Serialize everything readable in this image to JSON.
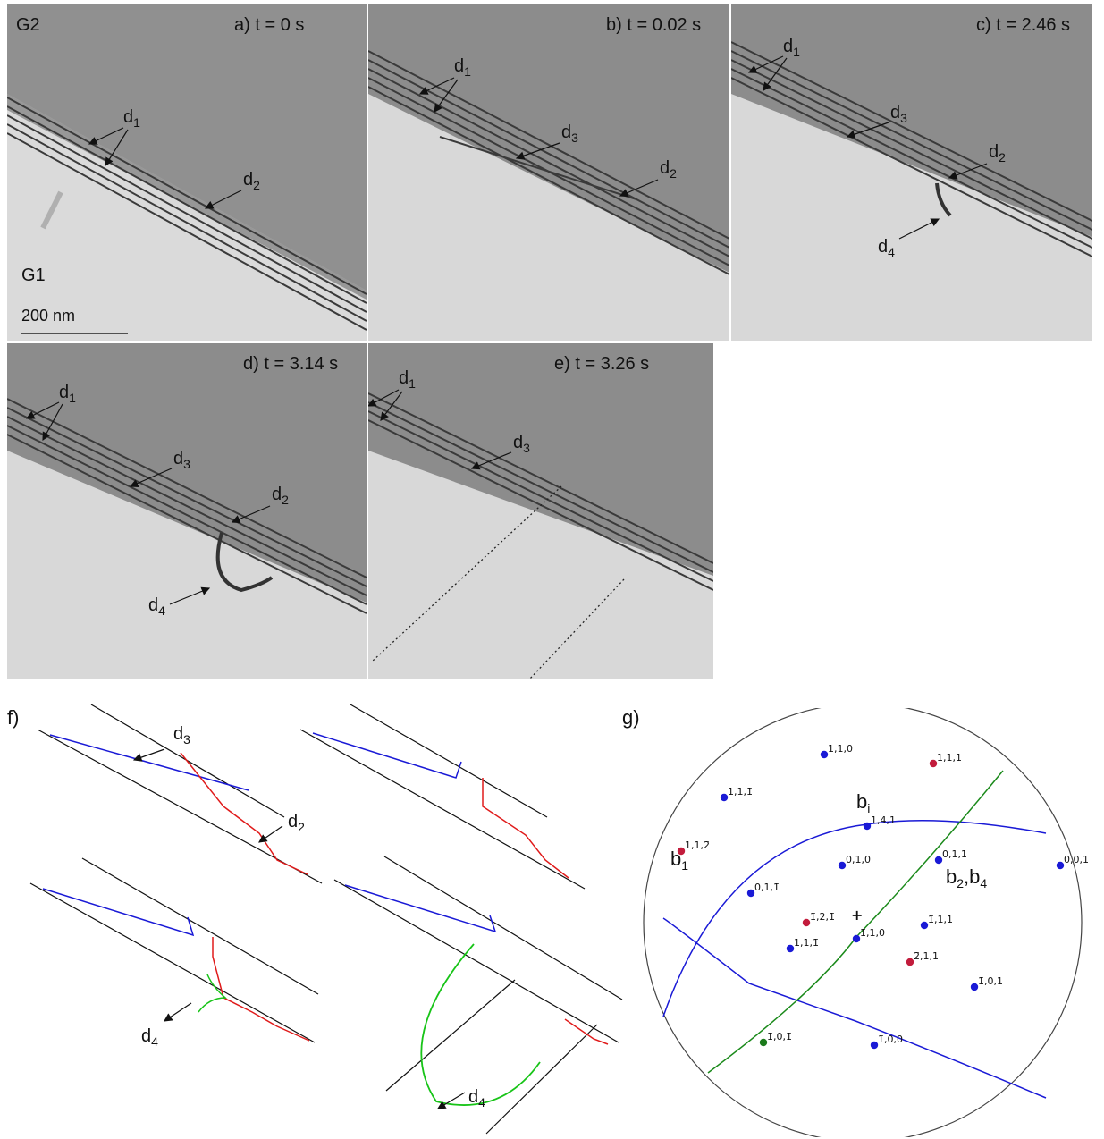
{
  "panels": [
    {
      "id": "a",
      "time_label": "a) t = 0 s"
    },
    {
      "id": "b",
      "time_label": "b) t = 0.02 s"
    },
    {
      "id": "c",
      "time_label": "c) t = 2.46 s"
    },
    {
      "id": "d",
      "time_label": "d) t = 3.14 s"
    },
    {
      "id": "e",
      "time_label": "e) t = 3.26 s"
    }
  ],
  "grain_labels": {
    "upper": "G2",
    "lower": "G1"
  },
  "scale_bar": {
    "label": "200 nm"
  },
  "dislocations": {
    "d": "d",
    "d1": "1",
    "d2": "2",
    "d3": "3",
    "d4": "4"
  },
  "panel_f": {
    "label": "f)"
  },
  "panel_g": {
    "label": "g)",
    "b_i": "b",
    "b_i_sub": "i",
    "b1": "b",
    "b1_sub": "1",
    "b24_a": "b",
    "b24_sub_a": "2",
    "b24_sep": ",",
    "b24_b": "b",
    "b24_sub_b": "4",
    "poles": [
      {
        "text": "1,1,0",
        "color": "blue"
      },
      {
        "text": "1,1,1",
        "color": "red"
      },
      {
        "text": "1,1,1̄",
        "color": "blue"
      },
      {
        "text": "1,4,1",
        "color": "blue"
      },
      {
        "text": "1,1,2̄",
        "color": "red"
      },
      {
        "text": "0,1,0",
        "color": "blue"
      },
      {
        "text": "0,1,1",
        "color": "blue"
      },
      {
        "text": "0,0,1",
        "color": "blue"
      },
      {
        "text": "0,1,1̄",
        "color": "blue"
      },
      {
        "text": "1̄,2,1̄",
        "color": "red"
      },
      {
        "text": "1̄,1,1",
        "color": "blue"
      },
      {
        "text": "1̄,1,0",
        "color": "blue"
      },
      {
        "text": "1,1,1̄",
        "color": "blue"
      },
      {
        "text": "2̄,1,1",
        "color": "red"
      },
      {
        "text": "1̄,0,1",
        "color": "blue"
      },
      {
        "text": "1̄,0,1̄",
        "color": "green"
      },
      {
        "text": "1̄,0,0",
        "color": "blue"
      }
    ]
  },
  "colors": {
    "upper_grain": "#8f8f8f",
    "lower_grain": "#d9d9d9",
    "blue": "#1a1ad6",
    "red": "#e01b1b",
    "green": "#18c418",
    "pole_green": "#1b7a1b",
    "pole_red": "#c21c3c"
  }
}
